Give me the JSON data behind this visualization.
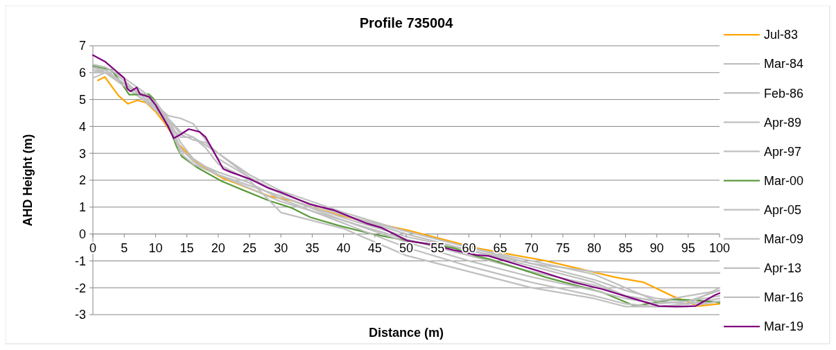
{
  "chart_data": {
    "type": "line",
    "title": "Profile 735004",
    "xlabel": "Distance (m)",
    "ylabel": "AHD Height (m)",
    "xlim": [
      0,
      100
    ],
    "xticks": [
      0,
      5,
      10,
      15,
      20,
      25,
      30,
      35,
      40,
      45,
      50,
      55,
      60,
      65,
      70,
      75,
      80,
      85,
      90,
      95,
      100
    ],
    "ylim": [
      -3,
      7
    ],
    "yticks": [
      -3,
      -2,
      -1,
      0,
      1,
      2,
      3,
      4,
      5,
      6,
      7
    ],
    "grid": "y",
    "legend": "right",
    "marker": "none",
    "line_style": "solid",
    "series": [
      {
        "name": "Jul-83",
        "color": "#ffa500",
        "x": [
          0.8,
          1.9,
          4.1,
          5.6,
          7.1,
          8.5,
          10,
          11.5,
          13.7,
          16.8,
          20.5,
          28.1,
          31.6,
          39.1,
          50.2,
          61.2,
          72.3,
          83.4,
          87.8,
          92.6,
          96.6,
          100
        ],
        "values": [
          5.71,
          5.84,
          5.14,
          4.84,
          4.97,
          4.88,
          4.55,
          4.11,
          3.33,
          2.6,
          2.1,
          1.41,
          1.25,
          0.71,
          0.14,
          -0.52,
          -1.0,
          -1.61,
          -1.79,
          -2.32,
          -2.68,
          -2.6
        ]
      },
      {
        "name": "Mar-84",
        "color": "#c0c0c0",
        "x": [
          0,
          2,
          5,
          8,
          10,
          12,
          14,
          16,
          18,
          20,
          25,
          30,
          40,
          50,
          60,
          70,
          80,
          85,
          90,
          95,
          100
        ],
        "values": [
          6.2,
          6.0,
          5.5,
          5.0,
          4.6,
          4.2,
          3.2,
          2.7,
          2.4,
          2.2,
          1.8,
          1.4,
          0.6,
          -0.1,
          -0.6,
          -1.1,
          -1.4,
          -1.45,
          -1.45,
          -1.45,
          -1.45
        ]
      },
      {
        "name": "Feb-86",
        "color": "#c0c0c0",
        "x": [
          0,
          2,
          5,
          8,
          10,
          12,
          14,
          16,
          18,
          20,
          25,
          30,
          40,
          50,
          60,
          70,
          80,
          85,
          90,
          95,
          100
        ],
        "values": [
          5.8,
          6.0,
          5.6,
          5.1,
          4.7,
          4.3,
          3.4,
          2.8,
          2.5,
          2.2,
          1.7,
          1.2,
          0.5,
          -0.2,
          -0.8,
          -1.4,
          -1.9,
          -2.3,
          -2.5,
          -2.6,
          -2.5
        ]
      },
      {
        "name": "Apr-89",
        "color": "#c0c0c0",
        "x": [
          0,
          2,
          5,
          8,
          10,
          12,
          14,
          16,
          18,
          20,
          25,
          30,
          40,
          50,
          60,
          70,
          80,
          85,
          90,
          95,
          100
        ],
        "values": [
          6.0,
          6.1,
          5.5,
          5.0,
          4.8,
          4.4,
          4.3,
          4.1,
          3.5,
          2.8,
          2.1,
          1.5,
          0.7,
          0.1,
          -0.5,
          -1.1,
          -1.7,
          -2.1,
          -2.4,
          -2.5,
          -2.3
        ]
      },
      {
        "name": "Apr-97",
        "color": "#c0c0c0",
        "x": [
          0,
          2,
          5,
          8,
          10,
          12,
          14,
          16,
          18,
          20,
          25,
          30,
          40,
          50,
          60,
          70,
          80,
          85,
          90,
          95,
          100
        ],
        "values": [
          6.3,
          6.2,
          5.7,
          5.1,
          4.6,
          4.3,
          3.8,
          3.6,
          3.3,
          3.0,
          2.2,
          1.6,
          0.8,
          0.1,
          -0.5,
          -1.0,
          -1.5,
          -2.0,
          -2.5,
          -2.6,
          -2.4
        ]
      },
      {
        "name": "Mar-00",
        "color": "#5b9a3c",
        "x": [
          0,
          3,
          4.9,
          5.8,
          8.9,
          9.6,
          11.1,
          12.3,
          13.4,
          14.2,
          16.8,
          20.5,
          24.2,
          28.1,
          31.6,
          34.7,
          39.1,
          44.6,
          50.2,
          57.6,
          61.2,
          63.5,
          72.3,
          81.4,
          86.5,
          89.5,
          92.4,
          96.1,
          100
        ],
        "values": [
          6.24,
          6.1,
          5.49,
          5.18,
          5.2,
          5.05,
          4.55,
          3.9,
          3.23,
          2.88,
          2.45,
          1.97,
          1.61,
          1.24,
          0.98,
          0.62,
          0.32,
          0,
          -0.25,
          -0.52,
          -0.82,
          -0.95,
          -1.61,
          -2.18,
          -2.68,
          -2.55,
          -2.43,
          -2.46,
          -2.55
        ]
      },
      {
        "name": "Apr-05",
        "color": "#c0c0c0",
        "x": [
          0,
          2,
          5,
          8,
          10,
          12,
          14,
          16,
          18,
          20,
          25,
          30,
          40,
          50,
          60,
          70,
          80,
          85,
          90,
          95,
          100
        ],
        "values": [
          6.2,
          6.1,
          5.6,
          5.2,
          4.9,
          4.2,
          3.0,
          2.6,
          2.4,
          2.2,
          1.8,
          1.4,
          0.5,
          -0.3,
          -1.0,
          -1.6,
          -2.1,
          -2.4,
          -2.6,
          -2.5,
          -2.1
        ]
      },
      {
        "name": "Mar-09",
        "color": "#c0c0c0",
        "x": [
          0,
          2,
          5,
          8,
          10,
          12,
          14,
          16,
          18,
          20,
          25,
          30,
          40,
          50,
          60,
          70,
          80,
          85,
          90,
          95,
          100
        ],
        "values": [
          6.1,
          6.0,
          5.6,
          5.1,
          4.7,
          4.0,
          3.1,
          2.8,
          2.5,
          2.3,
          1.9,
          1.3,
          0.4,
          -0.5,
          -1.2,
          -1.8,
          -2.3,
          -2.6,
          -2.7,
          -2.6,
          -2.0
        ]
      },
      {
        "name": "Apr-13",
        "color": "#c0c0c0",
        "x": [
          0,
          2,
          5,
          8,
          10,
          12,
          14,
          16,
          18,
          20,
          25,
          30,
          40,
          50,
          60,
          70,
          80,
          85,
          90,
          95,
          100
        ],
        "values": [
          6.0,
          6.0,
          5.5,
          5.2,
          4.8,
          4.1,
          3.6,
          3.6,
          3.2,
          2.6,
          2.0,
          0.8,
          0.2,
          -0.8,
          -1.4,
          -2.0,
          -2.4,
          -2.7,
          -2.7,
          -2.7,
          -2.5
        ]
      },
      {
        "name": "Mar-16",
        "color": "#c0c0c0",
        "x": [
          0,
          2,
          5,
          8,
          10,
          12,
          14,
          16,
          18,
          20,
          25,
          30,
          40,
          50,
          60,
          70,
          80,
          85,
          90,
          95,
          100
        ],
        "values": [
          6.3,
          6.2,
          5.8,
          5.3,
          4.9,
          4.3,
          3.7,
          3.5,
          3.4,
          3.0,
          2.1,
          1.5,
          0.7,
          0.0,
          -0.6,
          -1.2,
          -1.8,
          -2.3,
          -2.5,
          -2.3,
          -2.1
        ]
      },
      {
        "name": "Mar-19",
        "color": "#800080",
        "x": [
          0,
          2,
          4,
          5,
          5.5,
          6,
          7,
          7.5,
          9,
          10,
          11,
          12,
          12.9,
          14,
          15.3,
          17,
          18,
          20.8,
          22,
          25,
          28.1,
          30,
          34.7,
          38.4,
          43.6,
          46.1,
          50.2,
          53.9,
          57.6,
          61.2,
          63.2,
          72.3,
          76.8,
          81.4,
          85.8,
          90.3,
          93,
          96.2,
          99.2,
          100
        ],
        "values": [
          6.65,
          6.4,
          6.0,
          5.8,
          5.4,
          5.3,
          5.45,
          5.2,
          5.1,
          4.8,
          4.4,
          4.0,
          3.56,
          3.7,
          3.9,
          3.8,
          3.6,
          2.42,
          2.3,
          2.05,
          1.7,
          1.55,
          1.1,
          0.89,
          0.4,
          0.23,
          -0.25,
          -0.39,
          -0.6,
          -0.78,
          -0.82,
          -1.46,
          -1.8,
          -2.06,
          -2.37,
          -2.68,
          -2.7,
          -2.68,
          -2.28,
          -2.2
        ]
      }
    ]
  }
}
